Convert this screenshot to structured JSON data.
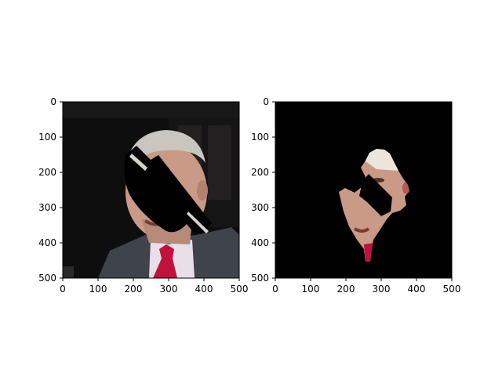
{
  "chart_data": [
    {
      "type": "image",
      "description": "masked face photo",
      "x_ticks": [
        0,
        100,
        200,
        300,
        400,
        500
      ],
      "y_ticks": [
        0,
        100,
        200,
        300,
        400,
        500
      ],
      "xlim": [
        0,
        500
      ],
      "ylim": [
        500,
        0
      ]
    },
    {
      "type": "image",
      "description": "segmented face region on black background",
      "x_ticks": [
        0,
        100,
        200,
        300,
        400,
        500
      ],
      "y_ticks": [
        0,
        100,
        200,
        300,
        400,
        500
      ],
      "xlim": [
        0,
        500
      ],
      "ylim": [
        500,
        0
      ]
    }
  ],
  "colors": {
    "background_dark": "#0f0e0f",
    "skin": "#c99a86",
    "hair": "#c9c6bf",
    "suit": "#3e434c",
    "shirt": "#e9dfe8",
    "tie": "#c0123c",
    "mask": "#000000"
  }
}
